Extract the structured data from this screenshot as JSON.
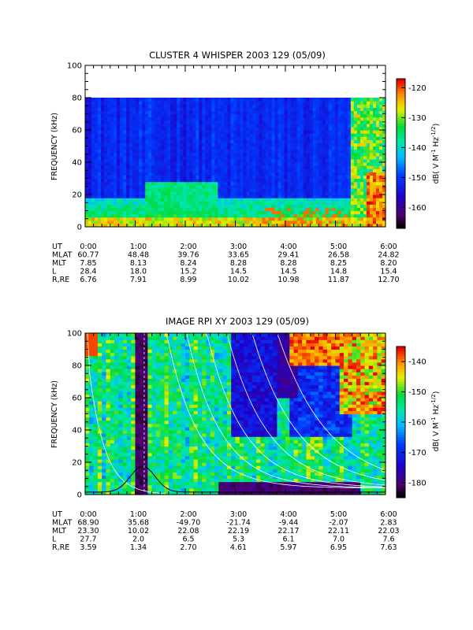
{
  "chart_data": [
    {
      "type": "heatmap",
      "title": "CLUSTER 4 WHISPER 2003 129 (05/09)",
      "ylabel": "FREQUENCY (kHz)",
      "ylim": [
        0,
        100
      ],
      "y_ticks": [
        "0",
        "20",
        "40",
        "60",
        "80",
        "100"
      ],
      "x_ticks": [
        "0:00",
        "1:00",
        "2:00",
        "3:00",
        "4:00",
        "5:00",
        "6:00"
      ],
      "data_ceiling_khz": 80,
      "colorbar": {
        "label": "dB( V M^-1 Hz^-1/2)",
        "label_main": "dB( V M",
        "label_sup1": "-1",
        "label_mid": " Hz",
        "label_sup2": "-1/2",
        "label_end": ")",
        "range": [
          -167,
          -117
        ],
        "ticks": [
          "-120",
          "-130",
          "-140",
          "-150",
          "-160"
        ],
        "tick_values": [
          -120,
          -130,
          -140,
          -150,
          -160
        ]
      },
      "ephemeris": {
        "labels": [
          "UT",
          "MLAT",
          "MLT",
          "L",
          "R,RE"
        ],
        "columns": [
          [
            "0:00",
            "60.77",
            "7.85",
            "28.4",
            "6.76"
          ],
          [
            "1:00",
            "48.48",
            "8.13",
            "18.0",
            "7.91"
          ],
          [
            "2:00",
            "39.76",
            "8.24",
            "15.2",
            "8.99"
          ],
          [
            "3:00",
            "33.65",
            "8.28",
            "14.5",
            "10.02"
          ],
          [
            "4:00",
            "29.41",
            "8.28",
            "14.5",
            "10.98"
          ],
          [
            "5:00",
            "26.58",
            "8.25",
            "14.8",
            "11.87"
          ],
          [
            "6:00",
            "24.82",
            "8.20",
            "15.4",
            "12.70"
          ]
        ]
      }
    },
    {
      "type": "heatmap",
      "title": "IMAGE RPI XY 2003 129 (05/09)",
      "ylabel": "FREQUENCY (kHz)",
      "ylim": [
        0,
        100
      ],
      "y_ticks": [
        "0",
        "20",
        "40",
        "60",
        "80",
        "100"
      ],
      "x_ticks": [
        "0:00",
        "1:00",
        "2:00",
        "3:00",
        "4:00",
        "5:00",
        "6:00"
      ],
      "colorbar": {
        "label": "dB( V M^-1 Hz^-1/2)",
        "label_main": "dB( V M",
        "label_sup1": "-1",
        "label_mid": " Hz",
        "label_sup2": "-1/2",
        "label_end": ")",
        "range": [
          -185,
          -135
        ],
        "ticks": [
          "-140",
          "-150",
          "-160",
          "-170",
          "-180"
        ],
        "tick_values": [
          -140,
          -150,
          -160,
          -170,
          -180
        ]
      },
      "ephemeris": {
        "labels": [
          "UT",
          "MLAT",
          "MLT",
          "L",
          "R,RE"
        ],
        "columns": [
          [
            "0:00",
            "68.90",
            "23.30",
            "27.7",
            "3.59"
          ],
          [
            "1:00",
            "35.68",
            "10.02",
            "2.0",
            "1.34"
          ],
          [
            "2:00",
            "-49.70",
            "22.08",
            "6.5",
            "2.70"
          ],
          [
            "3:00",
            "-21.74",
            "22.19",
            "5.3",
            "4.61"
          ],
          [
            "4:00",
            "-9.44",
            "22.17",
            "6.1",
            "5.97"
          ],
          [
            "5:00",
            "-2.07",
            "22.11",
            "7.0",
            "6.95"
          ],
          [
            "6:00",
            "2.83",
            "22.03",
            "7.6",
            "7.63"
          ]
        ]
      }
    }
  ]
}
